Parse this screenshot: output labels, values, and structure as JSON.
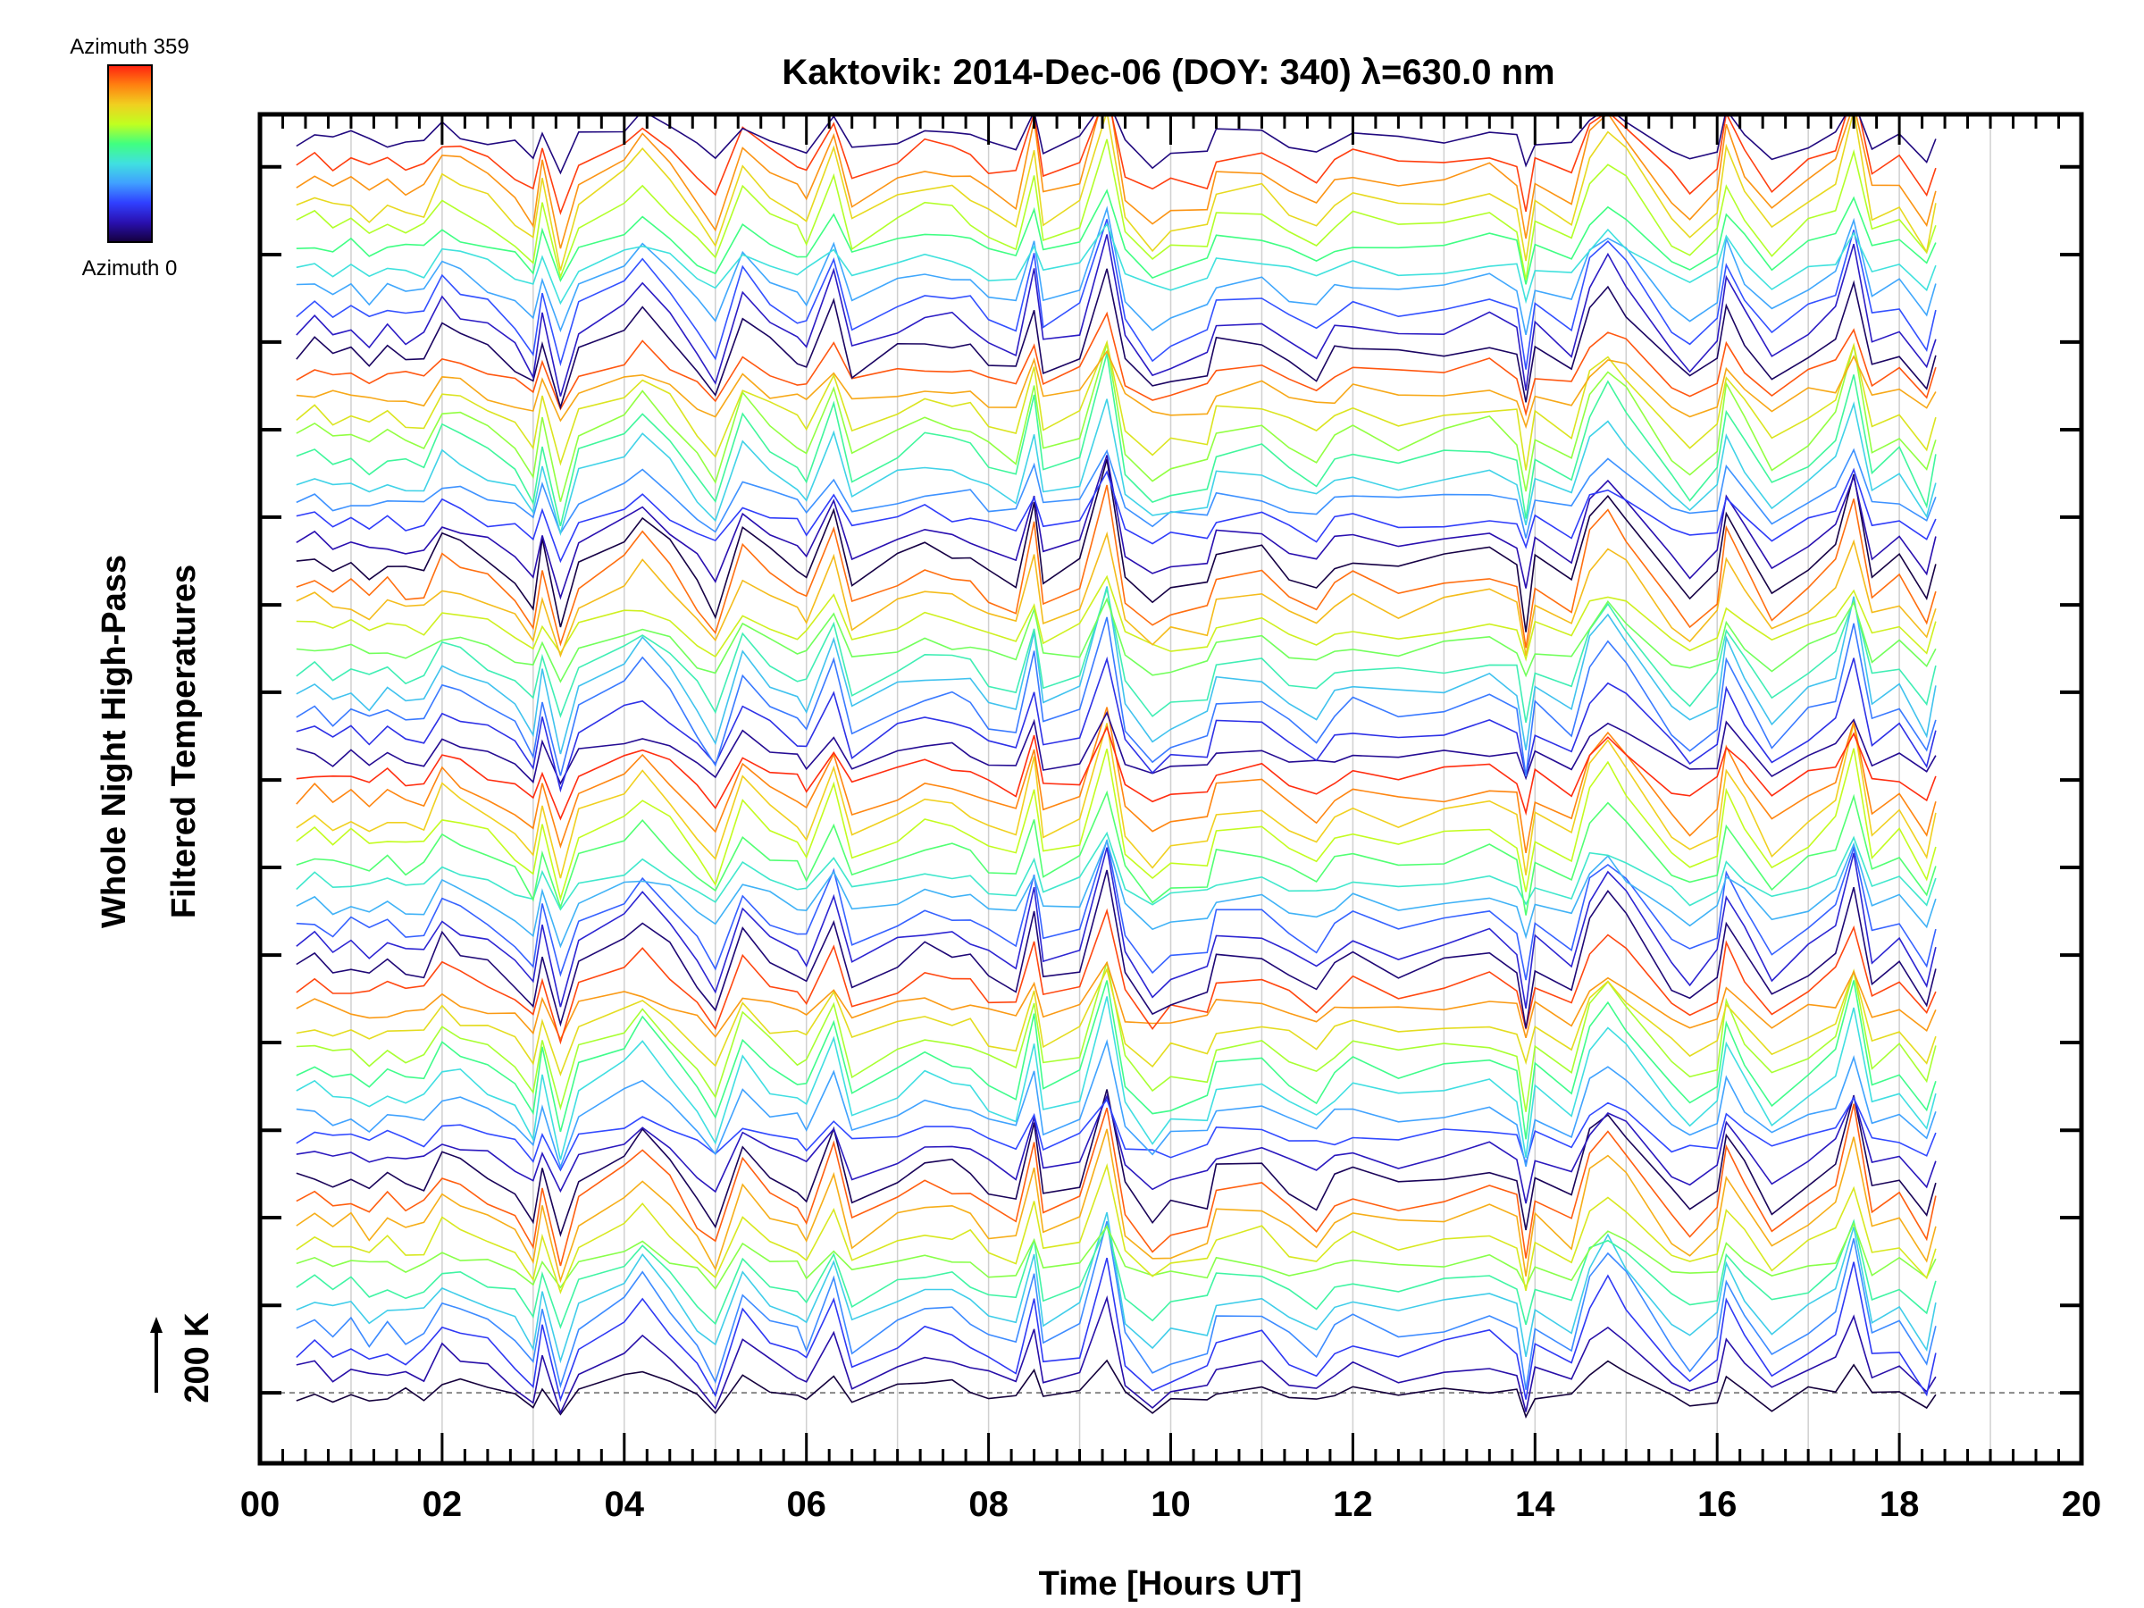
{
  "chart_data": {
    "type": "line",
    "title": "Kaktovik: 2014-Dec-06 (DOY: 340) λ=630.0 nm",
    "xlabel": "Time [Hours UT]",
    "ylabel_line1": "Whole Night High-Pass",
    "ylabel_line2": "Filtered Temperatures",
    "scale_bar_label": "200 K",
    "scale_bar_value_K": 200,
    "xlim": [
      0,
      20
    ],
    "ylim_K": [
      -196,
      3555
    ],
    "xticks": [
      0,
      2,
      4,
      6,
      8,
      10,
      12,
      14,
      16,
      18,
      20
    ],
    "xtick_labels": [
      "00",
      "02",
      "04",
      "06",
      "08",
      "10",
      "12",
      "14",
      "16",
      "18",
      "20"
    ],
    "ytick_values_K": [
      0,
      243,
      487,
      730,
      974,
      1217,
      1461,
      1704,
      1948,
      2191,
      2435,
      2678,
      2922,
      3165,
      3409
    ],
    "grid": "vertical hourly",
    "colorbar": {
      "top_label": "Azimuth 359",
      "bottom_label": "Azimuth 0",
      "range": [
        0,
        359
      ],
      "colormap": [
        "#14003c",
        "#2a10b0",
        "#3040ff",
        "#40a0ff",
        "#40e0e0",
        "#40ff80",
        "#c0ff20",
        "#f0d020",
        "#ff8010",
        "#ff2010"
      ]
    },
    "times": [
      0.4,
      0.6,
      0.8,
      1.0,
      1.2,
      1.4,
      1.6,
      1.8,
      2.0,
      2.2,
      2.5,
      2.8,
      3.0,
      3.1,
      3.3,
      3.5,
      4.0,
      4.2,
      4.5,
      4.8,
      5.0,
      5.3,
      5.6,
      5.9,
      6.0,
      6.3,
      6.5,
      7.0,
      7.3,
      7.6,
      7.8,
      8.0,
      8.3,
      8.5,
      8.6,
      9.0,
      9.3,
      9.5,
      9.8,
      10.0,
      10.4,
      10.5,
      11.0,
      11.3,
      11.6,
      11.8,
      12.0,
      12.5,
      13.0,
      13.5,
      13.8,
      13.9,
      14.0,
      14.4,
      14.6,
      14.8,
      15.0,
      15.5,
      15.7,
      16.0,
      16.1,
      16.3,
      16.6,
      17.0,
      17.3,
      17.5,
      17.7,
      18.0,
      18.3,
      18.4
    ],
    "common_signal_K": [
      0,
      20,
      -10,
      10,
      -20,
      5,
      -15,
      -10,
      60,
      40,
      10,
      -30,
      -80,
      40,
      -120,
      10,
      60,
      100,
      40,
      -40,
      -90,
      80,
      20,
      -10,
      -30,
      110,
      -40,
      10,
      40,
      30,
      20,
      -20,
      -40,
      120,
      -30,
      0,
      200,
      -20,
      -90,
      -60,
      -50,
      20,
      30,
      -20,
      -50,
      0,
      20,
      -10,
      10,
      30,
      0,
      -120,
      10,
      -40,
      100,
      150,
      100,
      -30,
      -70,
      -20,
      110,
      30,
      -60,
      0,
      40,
      180,
      -20,
      10,
      -80,
      0
    ],
    "series_azimuth": [
      0,
      37,
      74,
      111,
      148,
      185,
      222,
      259,
      296,
      333,
      10,
      47,
      84,
      121,
      158,
      195,
      232,
      269,
      306,
      343,
      20,
      57,
      94,
      131,
      168,
      205,
      242,
      279,
      316,
      353,
      30,
      67,
      104,
      141,
      178,
      215,
      252,
      289,
      326,
      3,
      40,
      77,
      114,
      151,
      188,
      225,
      262,
      299,
      336,
      13,
      50,
      87,
      124,
      161,
      198,
      235,
      272,
      309,
      346,
      23
    ],
    "series_offset_K": [
      0,
      59,
      118,
      177,
      236,
      295,
      354,
      413,
      472,
      531,
      590,
      649,
      708,
      767,
      826,
      885,
      944,
      1003,
      1062,
      1121,
      1180,
      1239,
      1298,
      1357,
      1416,
      1475,
      1534,
      1593,
      1652,
      1711,
      1770,
      1829,
      1888,
      1947,
      2006,
      2065,
      2124,
      2183,
      2242,
      2301,
      2360,
      2419,
      2478,
      2537,
      2596,
      2655,
      2714,
      2773,
      2832,
      2891,
      2950,
      3009,
      3068,
      3127,
      3186,
      3245,
      3304,
      3363,
      3422,
      3481
    ]
  }
}
